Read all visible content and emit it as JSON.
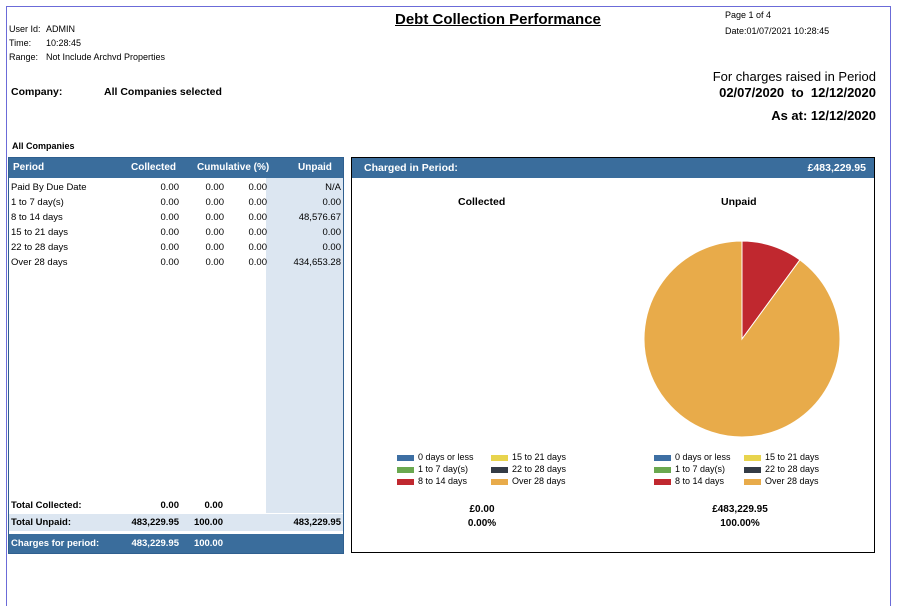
{
  "meta": {
    "user_label": "User Id:",
    "user_value": "ADMIN",
    "time_label": "Time:",
    "time_value": "10:28:45",
    "range_label": "Range:",
    "range_value": "Not Include Archvd Properties",
    "page": "Page 1 of 4",
    "date": "Date:01/07/2021 10:28:45"
  },
  "report": {
    "title": "Debt Collection Performance",
    "company_label": "Company:",
    "company_value": "All Companies selected",
    "period_heading": "For charges raised in Period",
    "period_from": "02/07/2020",
    "period_to_word": "to",
    "period_to": "12/12/2020",
    "as_at": "As at: 12/12/2020",
    "section": "All Companies"
  },
  "table": {
    "headers": [
      "Period",
      "Collected",
      "Cumulative (%)",
      "Unpaid"
    ],
    "rows": [
      {
        "period": "Paid By Due Date",
        "collected": "0.00",
        "c1": "0.00",
        "c2": "0.00",
        "unpaid": "N/A"
      },
      {
        "period": "1 to 7 day(s)",
        "collected": "0.00",
        "c1": "0.00",
        "c2": "0.00",
        "unpaid": "0.00"
      },
      {
        "period": "8 to 14 days",
        "collected": "0.00",
        "c1": "0.00",
        "c2": "0.00",
        "unpaid": "48,576.67"
      },
      {
        "period": "15 to 21 days",
        "collected": "0.00",
        "c1": "0.00",
        "c2": "0.00",
        "unpaid": "0.00"
      },
      {
        "period": "22 to 28 days",
        "collected": "0.00",
        "c1": "0.00",
        "c2": "0.00",
        "unpaid": "0.00"
      },
      {
        "period": "Over 28 days",
        "collected": "0.00",
        "c1": "0.00",
        "c2": "0.00",
        "unpaid": "434,653.28"
      }
    ],
    "total_collected": {
      "label": "Total Collected:",
      "collected": "0.00",
      "cum": "0.00"
    },
    "total_unpaid": {
      "label": "Total Unpaid:",
      "collected": "483,229.95",
      "cum": "100.00",
      "unpaid": "483,229.95"
    },
    "charges": {
      "label": "Charges for period:",
      "collected": "483,229.95",
      "cum": "100.00"
    }
  },
  "charts": {
    "header_label": "Charged in Period:",
    "header_value": "£483,229.95",
    "collected_title": "Collected",
    "unpaid_title": "Unpaid",
    "legend": [
      {
        "label": "0 days or less",
        "color": "#3d6fa3"
      },
      {
        "label": "15 to 21 days",
        "color": "#e8d44d"
      },
      {
        "label": "1 to 7 day(s)",
        "color": "#6aa84f"
      },
      {
        "label": "22 to 28 days",
        "color": "#333b45"
      },
      {
        "label": "8 to 14 days",
        "color": "#c0282f"
      },
      {
        "label": "Over 28 days",
        "color": "#e8ab4a"
      }
    ],
    "collected_amount": "£0.00",
    "collected_pct": "0.00%",
    "unpaid_amount": "£483,229.95",
    "unpaid_pct": "100.00%"
  },
  "chart_data": {
    "type": "pie",
    "title": "Unpaid",
    "categories": [
      "0 days or less",
      "1 to 7 day(s)",
      "8 to 14 days",
      "15 to 21 days",
      "22 to 28 days",
      "Over 28 days"
    ],
    "values": [
      0,
      0,
      48576.67,
      0,
      0,
      434653.28
    ],
    "colors": [
      "#3d6fa3",
      "#6aa84f",
      "#c0282f",
      "#e8d44d",
      "#333b45",
      "#e8ab4a"
    ]
  }
}
